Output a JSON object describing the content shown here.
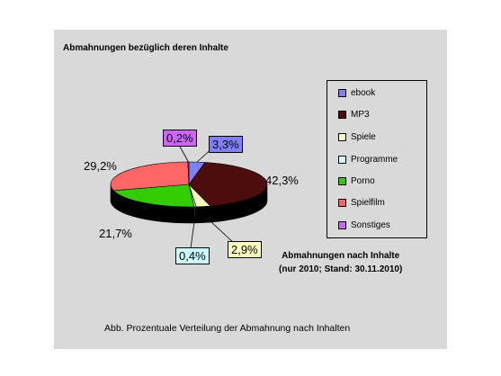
{
  "chart_data": {
    "type": "pie",
    "title": "Abmahnungen bezüglich deren Inhalte",
    "subtitle_line1": "Abmahnungen nach Inhalte",
    "subtitle_line2": "(nur 2010; Stand: 30.11.2010)",
    "caption": "Abb. Prozentuale Verteilung der Abmahnung nach Inhalten",
    "legend_position": "right",
    "categories": [
      "ebook",
      "MP3",
      "Spiele",
      "Programme",
      "Porno",
      "Spielfilm",
      "Sonstiges"
    ],
    "values": [
      3.3,
      42.3,
      2.9,
      0.4,
      21.7,
      29.2,
      0.2
    ],
    "value_labels": [
      "3,3%",
      "42,3%",
      "2,9%",
      "0,4%",
      "21,7%",
      "29,2%",
      "0,2%"
    ],
    "colors": [
      "#8080ff",
      "#4d0d0d",
      "#ffffc0",
      "#ccffff",
      "#33cc00",
      "#ff6666",
      "#cc66ff"
    ],
    "unit": "%"
  }
}
